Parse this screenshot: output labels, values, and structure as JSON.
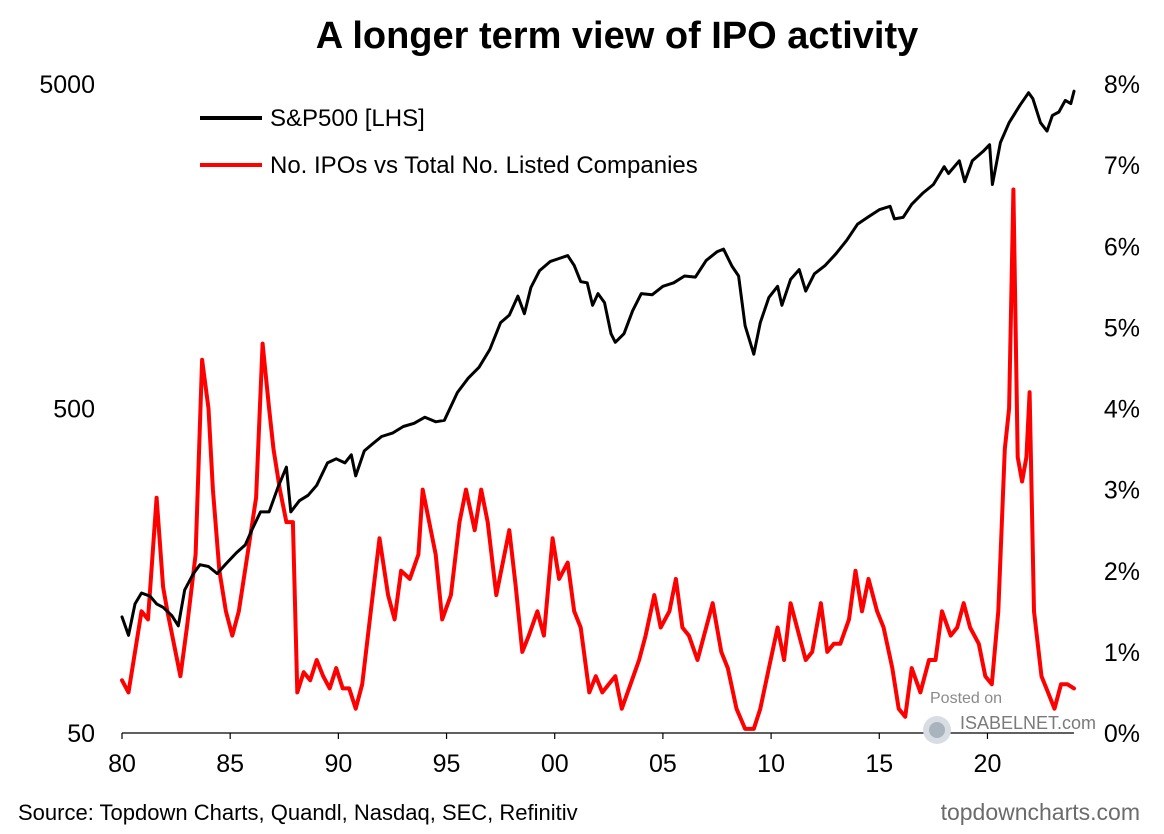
{
  "chart_data": {
    "type": "line",
    "title": "A longer term view of IPO activity",
    "source": "Source: Topdown Charts, Quandl, Nasdaq, SEC, Refinitiv",
    "credit": "topdowncharts.com",
    "watermark": {
      "line1": "Posted on",
      "line2": "ISABELNET.com"
    },
    "x_range": [
      1980,
      2024
    ],
    "x_ticks": [
      {
        "value": 1980,
        "label": "80"
      },
      {
        "value": 1985,
        "label": "85"
      },
      {
        "value": 1990,
        "label": "90"
      },
      {
        "value": 1995,
        "label": "95"
      },
      {
        "value": 2000,
        "label": "00"
      },
      {
        "value": 2005,
        "label": "05"
      },
      {
        "value": 2010,
        "label": "10"
      },
      {
        "value": 2015,
        "label": "15"
      },
      {
        "value": 2020,
        "label": "20"
      }
    ],
    "y_left": {
      "scale": "log",
      "range": [
        50,
        5000
      ],
      "ticks": [
        {
          "value": 5000,
          "label": "5000"
        },
        {
          "value": 500,
          "label": "500"
        },
        {
          "value": 50,
          "label": "50"
        }
      ]
    },
    "y_right": {
      "scale": "linear",
      "range": [
        0,
        8
      ],
      "ticks": [
        {
          "value": 8,
          "label": "8%"
        },
        {
          "value": 7,
          "label": "7%"
        },
        {
          "value": 6,
          "label": "6%"
        },
        {
          "value": 5,
          "label": "5%"
        },
        {
          "value": 4,
          "label": "4%"
        },
        {
          "value": 3,
          "label": "3%"
        },
        {
          "value": 2,
          "label": "2%"
        },
        {
          "value": 1,
          "label": "1%"
        },
        {
          "value": 0,
          "label": "0%"
        }
      ]
    },
    "legend_position": "top-left",
    "series": [
      {
        "name": "S&P500 [LHS]",
        "axis": "left",
        "color": "#000000",
        "points": [
          [
            1980.0,
            114
          ],
          [
            1980.3,
            100
          ],
          [
            1980.6,
            125
          ],
          [
            1980.9,
            135
          ],
          [
            1981.3,
            132
          ],
          [
            1981.6,
            125
          ],
          [
            1981.9,
            122
          ],
          [
            1982.3,
            115
          ],
          [
            1982.6,
            107
          ],
          [
            1982.9,
            138
          ],
          [
            1983.3,
            155
          ],
          [
            1983.6,
            165
          ],
          [
            1984.0,
            163
          ],
          [
            1984.4,
            155
          ],
          [
            1984.8,
            166
          ],
          [
            1985.3,
            180
          ],
          [
            1985.7,
            190
          ],
          [
            1986.0,
            211
          ],
          [
            1986.4,
            240
          ],
          [
            1986.8,
            240
          ],
          [
            1987.2,
            285
          ],
          [
            1987.6,
            330
          ],
          [
            1987.8,
            240
          ],
          [
            1988.2,
            260
          ],
          [
            1988.6,
            270
          ],
          [
            1989.0,
            290
          ],
          [
            1989.5,
            340
          ],
          [
            1989.9,
            350
          ],
          [
            1990.3,
            340
          ],
          [
            1990.6,
            360
          ],
          [
            1990.8,
            310
          ],
          [
            1991.2,
            370
          ],
          [
            1991.6,
            390
          ],
          [
            1992.0,
            410
          ],
          [
            1992.5,
            420
          ],
          [
            1993.0,
            440
          ],
          [
            1993.5,
            450
          ],
          [
            1994.0,
            470
          ],
          [
            1994.5,
            455
          ],
          [
            1994.9,
            460
          ],
          [
            1995.5,
            560
          ],
          [
            1996.0,
            620
          ],
          [
            1996.5,
            670
          ],
          [
            1997.0,
            760
          ],
          [
            1997.5,
            920
          ],
          [
            1997.9,
            970
          ],
          [
            1998.3,
            1110
          ],
          [
            1998.6,
            980
          ],
          [
            1998.9,
            1180
          ],
          [
            1999.3,
            1330
          ],
          [
            1999.8,
            1420
          ],
          [
            2000.2,
            1450
          ],
          [
            2000.6,
            1480
          ],
          [
            2000.9,
            1380
          ],
          [
            2001.2,
            1230
          ],
          [
            2001.5,
            1220
          ],
          [
            2001.75,
            1040
          ],
          [
            2002.0,
            1130
          ],
          [
            2002.3,
            1060
          ],
          [
            2002.6,
            850
          ],
          [
            2002.8,
            800
          ],
          [
            2003.2,
            850
          ],
          [
            2003.6,
            1000
          ],
          [
            2004.0,
            1130
          ],
          [
            2004.5,
            1120
          ],
          [
            2005.0,
            1190
          ],
          [
            2005.5,
            1220
          ],
          [
            2006.0,
            1280
          ],
          [
            2006.5,
            1270
          ],
          [
            2007.0,
            1430
          ],
          [
            2007.5,
            1520
          ],
          [
            2007.8,
            1550
          ],
          [
            2008.2,
            1370
          ],
          [
            2008.5,
            1280
          ],
          [
            2008.8,
            900
          ],
          [
            2009.2,
            735
          ],
          [
            2009.5,
            920
          ],
          [
            2009.9,
            1100
          ],
          [
            2010.3,
            1190
          ],
          [
            2010.5,
            1040
          ],
          [
            2010.9,
            1250
          ],
          [
            2011.3,
            1340
          ],
          [
            2011.6,
            1150
          ],
          [
            2012.0,
            1300
          ],
          [
            2012.5,
            1380
          ],
          [
            2013.0,
            1500
          ],
          [
            2013.5,
            1650
          ],
          [
            2014.0,
            1850
          ],
          [
            2014.5,
            1950
          ],
          [
            2015.0,
            2050
          ],
          [
            2015.5,
            2100
          ],
          [
            2015.7,
            1920
          ],
          [
            2016.1,
            1940
          ],
          [
            2016.5,
            2130
          ],
          [
            2017.0,
            2300
          ],
          [
            2017.5,
            2450
          ],
          [
            2018.0,
            2780
          ],
          [
            2018.2,
            2650
          ],
          [
            2018.7,
            2900
          ],
          [
            2018.95,
            2500
          ],
          [
            2019.3,
            2900
          ],
          [
            2019.8,
            3100
          ],
          [
            2020.1,
            3250
          ],
          [
            2020.23,
            2450
          ],
          [
            2020.6,
            3300
          ],
          [
            2021.0,
            3800
          ],
          [
            2021.5,
            4300
          ],
          [
            2021.9,
            4700
          ],
          [
            2022.1,
            4500
          ],
          [
            2022.45,
            3800
          ],
          [
            2022.75,
            3580
          ],
          [
            2023.0,
            4000
          ],
          [
            2023.3,
            4100
          ],
          [
            2023.6,
            4450
          ],
          [
            2023.85,
            4350
          ],
          [
            2024.0,
            4750
          ]
        ]
      },
      {
        "name": "No. IPOs vs Total No. Listed Companies",
        "axis": "right",
        "color": "#ff0000",
        "points": [
          [
            1980.0,
            0.65
          ],
          [
            1980.3,
            0.5
          ],
          [
            1980.6,
            1.0
          ],
          [
            1980.9,
            1.5
          ],
          [
            1981.2,
            1.4
          ],
          [
            1981.6,
            2.9
          ],
          [
            1981.9,
            1.8
          ],
          [
            1982.1,
            1.5
          ],
          [
            1982.4,
            1.1
          ],
          [
            1982.7,
            0.7
          ],
          [
            1983.0,
            1.3
          ],
          [
            1983.4,
            2.2
          ],
          [
            1983.7,
            4.6
          ],
          [
            1984.0,
            4.0
          ],
          [
            1984.2,
            3.0
          ],
          [
            1984.5,
            2.0
          ],
          [
            1984.8,
            1.5
          ],
          [
            1985.1,
            1.2
          ],
          [
            1985.4,
            1.5
          ],
          [
            1985.8,
            2.2
          ],
          [
            1986.2,
            2.9
          ],
          [
            1986.5,
            4.8
          ],
          [
            1986.8,
            4.0
          ],
          [
            1987.0,
            3.5
          ],
          [
            1987.3,
            3.0
          ],
          [
            1987.6,
            2.6
          ],
          [
            1987.9,
            2.6
          ],
          [
            1988.1,
            0.5
          ],
          [
            1988.4,
            0.75
          ],
          [
            1988.7,
            0.65
          ],
          [
            1989.0,
            0.9
          ],
          [
            1989.3,
            0.7
          ],
          [
            1989.6,
            0.55
          ],
          [
            1989.9,
            0.8
          ],
          [
            1990.2,
            0.55
          ],
          [
            1990.5,
            0.55
          ],
          [
            1990.8,
            0.3
          ],
          [
            1991.1,
            0.6
          ],
          [
            1991.5,
            1.5
          ],
          [
            1991.9,
            2.4
          ],
          [
            1992.3,
            1.7
          ],
          [
            1992.6,
            1.4
          ],
          [
            1992.9,
            2.0
          ],
          [
            1993.3,
            1.9
          ],
          [
            1993.7,
            2.2
          ],
          [
            1993.9,
            3.0
          ],
          [
            1994.2,
            2.6
          ],
          [
            1994.5,
            2.2
          ],
          [
            1994.8,
            1.4
          ],
          [
            1995.2,
            1.7
          ],
          [
            1995.6,
            2.6
          ],
          [
            1995.9,
            3.0
          ],
          [
            1996.3,
            2.5
          ],
          [
            1996.6,
            3.0
          ],
          [
            1996.9,
            2.6
          ],
          [
            1997.3,
            1.7
          ],
          [
            1997.6,
            2.1
          ],
          [
            1997.9,
            2.5
          ],
          [
            1998.2,
            1.8
          ],
          [
            1998.5,
            1.0
          ],
          [
            1998.8,
            1.2
          ],
          [
            1999.2,
            1.5
          ],
          [
            1999.5,
            1.2
          ],
          [
            1999.9,
            2.4
          ],
          [
            2000.2,
            1.9
          ],
          [
            2000.6,
            2.1
          ],
          [
            2000.9,
            1.5
          ],
          [
            2001.2,
            1.3
          ],
          [
            2001.6,
            0.5
          ],
          [
            2001.9,
            0.7
          ],
          [
            2002.2,
            0.5
          ],
          [
            2002.5,
            0.6
          ],
          [
            2002.8,
            0.7
          ],
          [
            2003.1,
            0.3
          ],
          [
            2003.5,
            0.6
          ],
          [
            2003.9,
            0.9
          ],
          [
            2004.2,
            1.2
          ],
          [
            2004.6,
            1.7
          ],
          [
            2004.9,
            1.3
          ],
          [
            2005.3,
            1.5
          ],
          [
            2005.6,
            1.9
          ],
          [
            2005.9,
            1.3
          ],
          [
            2006.2,
            1.2
          ],
          [
            2006.6,
            0.9
          ],
          [
            2006.9,
            1.2
          ],
          [
            2007.3,
            1.6
          ],
          [
            2007.7,
            1.0
          ],
          [
            2008.0,
            0.8
          ],
          [
            2008.4,
            0.3
          ],
          [
            2008.8,
            0.05
          ],
          [
            2009.2,
            0.05
          ],
          [
            2009.5,
            0.3
          ],
          [
            2009.9,
            0.8
          ],
          [
            2010.3,
            1.3
          ],
          [
            2010.6,
            0.9
          ],
          [
            2010.9,
            1.6
          ],
          [
            2011.3,
            1.2
          ],
          [
            2011.6,
            0.9
          ],
          [
            2011.9,
            1.0
          ],
          [
            2012.3,
            1.6
          ],
          [
            2012.6,
            1.0
          ],
          [
            2012.9,
            1.1
          ],
          [
            2013.2,
            1.1
          ],
          [
            2013.6,
            1.4
          ],
          [
            2013.9,
            2.0
          ],
          [
            2014.2,
            1.5
          ],
          [
            2014.5,
            1.9
          ],
          [
            2014.9,
            1.5
          ],
          [
            2015.2,
            1.3
          ],
          [
            2015.6,
            0.8
          ],
          [
            2015.9,
            0.3
          ],
          [
            2016.2,
            0.2
          ],
          [
            2016.5,
            0.8
          ],
          [
            2016.9,
            0.5
          ],
          [
            2017.3,
            0.9
          ],
          [
            2017.6,
            0.9
          ],
          [
            2017.9,
            1.5
          ],
          [
            2018.3,
            1.2
          ],
          [
            2018.6,
            1.3
          ],
          [
            2018.9,
            1.6
          ],
          [
            2019.2,
            1.3
          ],
          [
            2019.6,
            1.1
          ],
          [
            2019.9,
            0.7
          ],
          [
            2020.2,
            0.6
          ],
          [
            2020.5,
            1.5
          ],
          [
            2020.8,
            3.5
          ],
          [
            2021.0,
            4.0
          ],
          [
            2021.2,
            6.7
          ],
          [
            2021.4,
            3.4
          ],
          [
            2021.6,
            3.1
          ],
          [
            2021.8,
            3.4
          ],
          [
            2021.95,
            4.2
          ],
          [
            2022.15,
            1.5
          ],
          [
            2022.5,
            0.7
          ],
          [
            2022.8,
            0.5
          ],
          [
            2023.1,
            0.3
          ],
          [
            2023.4,
            0.6
          ],
          [
            2023.7,
            0.6
          ],
          [
            2024.0,
            0.55
          ]
        ]
      }
    ]
  }
}
